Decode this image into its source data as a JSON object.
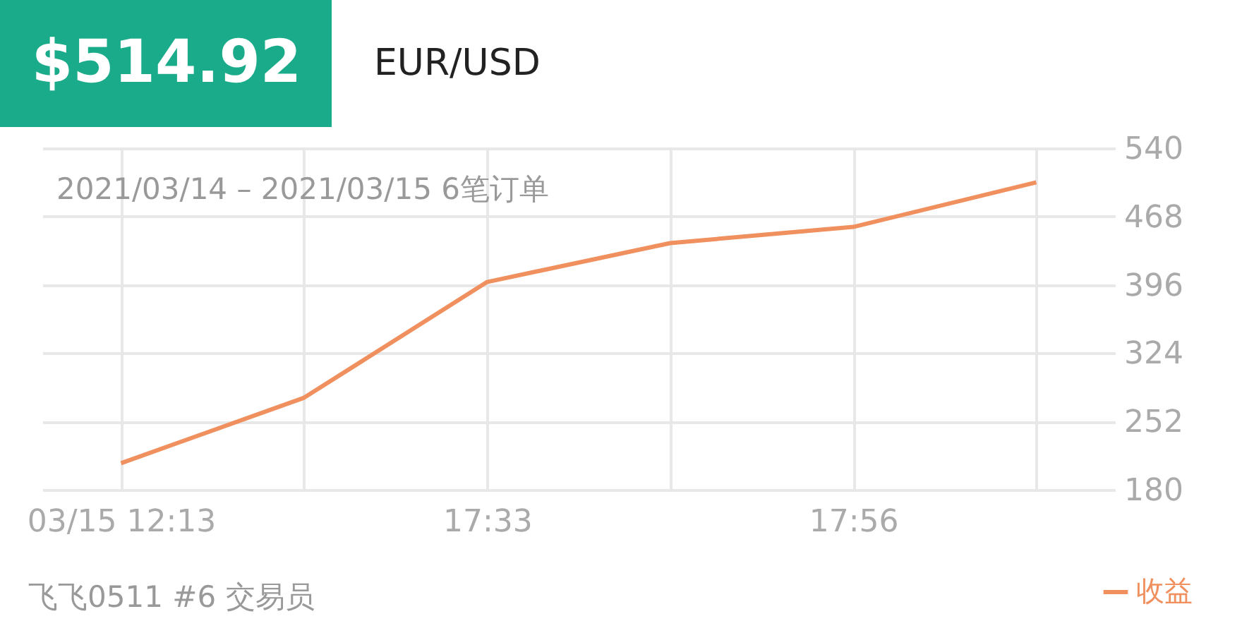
{
  "chart_data": {
    "type": "line",
    "title": "$514.92",
    "subtitle": "EUR/USD",
    "categories": [
      "03/15 12:13",
      null,
      "17:33",
      null,
      "17:56",
      null
    ],
    "series": [
      {
        "name": "收益",
        "color": "#f0905f",
        "values": [
          208,
          277,
          399,
          440,
          457,
          504
        ]
      }
    ],
    "ylim": [
      180,
      540
    ],
    "yticks": [
      180,
      252,
      324,
      396,
      468,
      540
    ],
    "grid": true,
    "legend": "bottom right",
    "marker": "none",
    "annotations": [
      "2021/03/14 – 2021/03/15 6笔订单",
      "飞飞0511 #6 交易员"
    ]
  }
}
